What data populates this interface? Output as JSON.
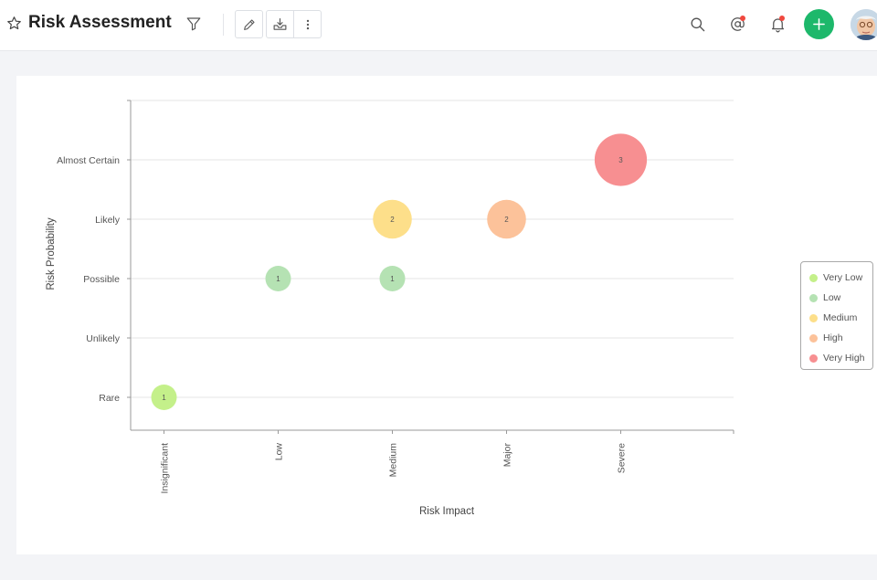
{
  "header": {
    "title": "Risk Assessment"
  },
  "chart_data": {
    "type": "bubble",
    "xlabel": "Risk Impact",
    "ylabel": "Risk Probability",
    "x_categories": [
      "Insignificant",
      "Low",
      "Medium",
      "Major",
      "Severe"
    ],
    "y_categories": [
      "Rare",
      "Unlikely",
      "Possible",
      "Likely",
      "Almost Certain"
    ],
    "series": [
      {
        "name": "Very Low",
        "color": "#c4f08a",
        "points": [
          {
            "x": "Insignificant",
            "y": "Rare",
            "count": 1
          }
        ]
      },
      {
        "name": "Low",
        "color": "#b5e2b3",
        "points": [
          {
            "x": "Low",
            "y": "Possible",
            "count": 1
          },
          {
            "x": "Medium",
            "y": "Possible",
            "count": 1
          }
        ]
      },
      {
        "name": "Medium",
        "color": "#fddf8a",
        "points": [
          {
            "x": "Medium",
            "y": "Likely",
            "count": 2
          }
        ]
      },
      {
        "name": "High",
        "color": "#fcc29a",
        "points": [
          {
            "x": "Major",
            "y": "Likely",
            "count": 2
          }
        ]
      },
      {
        "name": "Very High",
        "color": "#f78f91",
        "points": [
          {
            "x": "Severe",
            "y": "Almost Certain",
            "count": 3
          }
        ]
      }
    ],
    "legend_position": "right",
    "grid": true
  }
}
